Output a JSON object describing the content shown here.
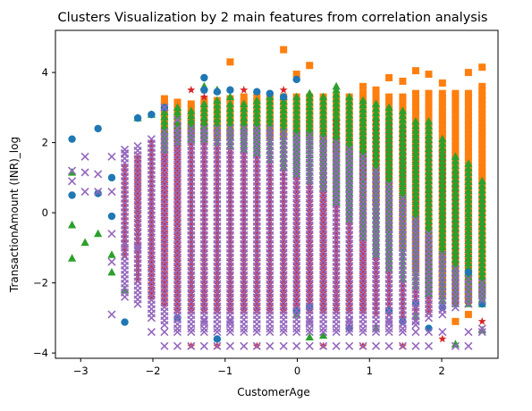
{
  "chart_data": {
    "type": "scatter",
    "title": "Clusters Visualization by 2 main features from correlation analysis",
    "xlabel": "CustomerAge",
    "ylabel": "TransactionAmount (INR)_log",
    "xlim": [
      -3.35,
      2.78
    ],
    "ylim": [
      -4.15,
      5.2
    ],
    "xticks": [
      -3,
      -2,
      -1,
      0,
      1,
      2
    ],
    "yticks": [
      -4,
      -2,
      0,
      2,
      4
    ],
    "grid": false,
    "legend": "none",
    "age_levels": [
      -3.12,
      -2.94,
      -2.76,
      -2.57,
      -2.39,
      -2.21,
      -2.02,
      -1.84,
      -1.66,
      -1.47,
      -1.29,
      -1.11,
      -0.93,
      -0.74,
      -0.56,
      -0.38,
      -0.19,
      -0.01,
      0.17,
      0.36,
      0.54,
      0.72,
      0.91,
      1.09,
      1.27,
      1.46,
      1.64,
      1.82,
      2.01,
      2.19,
      2.37,
      2.56
    ],
    "series": [
      {
        "color": "#ff7f0e",
        "marker": "square",
        "bands": [
          [
            -1.84,
            2.3,
            3.2
          ],
          [
            -1.66,
            2.2,
            3.15
          ],
          [
            -1.47,
            2.3,
            3.1
          ],
          [
            -1.29,
            2.2,
            3.2
          ],
          [
            -1.11,
            2.2,
            3.2
          ],
          [
            -0.93,
            2.2,
            3.25
          ],
          [
            -0.74,
            2.3,
            3.3
          ],
          [
            -0.56,
            2.2,
            3.3
          ],
          [
            -0.38,
            2.2,
            3.3
          ],
          [
            -0.19,
            2.2,
            3.3
          ],
          [
            -0.01,
            2.2,
            3.3
          ],
          [
            0.17,
            2.2,
            3.3
          ],
          [
            0.36,
            2.0,
            3.3
          ],
          [
            0.54,
            1.8,
            3.3
          ],
          [
            0.72,
            1.5,
            3.3
          ],
          [
            0.91,
            1.0,
            3.4
          ],
          [
            1.09,
            0.3,
            3.3
          ],
          [
            1.27,
            -0.4,
            3.3
          ],
          [
            1.46,
            -1.0,
            3.3
          ],
          [
            1.64,
            -1.6,
            3.4
          ],
          [
            1.82,
            -2.0,
            3.4
          ],
          [
            2.01,
            -2.3,
            3.4
          ],
          [
            2.19,
            -2.5,
            3.3
          ],
          [
            2.37,
            -2.5,
            3.4
          ],
          [
            2.56,
            -2.3,
            3.6
          ]
        ],
        "points": [
          [
            -1.84,
            3.25
          ],
          [
            -0.93,
            4.3
          ],
          [
            -0.19,
            4.65
          ],
          [
            -0.01,
            3.95
          ],
          [
            0.17,
            4.2
          ],
          [
            0.91,
            3.6
          ],
          [
            1.09,
            3.5
          ],
          [
            1.27,
            3.85
          ],
          [
            1.46,
            3.75
          ],
          [
            1.64,
            4.05
          ],
          [
            1.82,
            3.95
          ],
          [
            2.01,
            3.7
          ],
          [
            2.19,
            3.4
          ],
          [
            2.37,
            4.0
          ],
          [
            2.56,
            4.15
          ],
          [
            2.19,
            -3.1
          ],
          [
            2.37,
            -2.9
          ]
        ]
      },
      {
        "color": "#d62728",
        "marker": "star",
        "bands": [
          [
            -2.39,
            -1.2,
            1.3
          ],
          [
            -2.21,
            -1.8,
            1.6
          ],
          [
            -2.02,
            -2.4,
            2.0
          ],
          [
            -1.84,
            -2.6,
            2.4
          ],
          [
            -1.66,
            -2.8,
            2.5
          ],
          [
            -1.47,
            -2.8,
            2.6
          ],
          [
            -1.29,
            -2.8,
            2.6
          ],
          [
            -1.11,
            -2.8,
            2.6
          ],
          [
            -0.93,
            -2.8,
            2.6
          ],
          [
            -0.74,
            -2.8,
            2.6
          ],
          [
            -0.56,
            -2.8,
            2.6
          ],
          [
            -0.38,
            -2.8,
            2.6
          ],
          [
            -0.19,
            -2.8,
            2.6
          ],
          [
            -0.01,
            -2.8,
            2.6
          ],
          [
            0.17,
            -2.8,
            2.6
          ],
          [
            0.36,
            -2.8,
            2.6
          ],
          [
            0.54,
            -2.8,
            2.6
          ],
          [
            0.72,
            -2.8,
            2.6
          ],
          [
            0.91,
            -2.8,
            2.6
          ],
          [
            1.09,
            -2.9,
            2.6
          ],
          [
            1.27,
            -2.9,
            2.6
          ],
          [
            1.46,
            -3.0,
            2.4
          ],
          [
            1.64,
            -2.9,
            2.3
          ],
          [
            1.82,
            -2.8,
            2.1
          ],
          [
            2.01,
            -2.7,
            1.7
          ],
          [
            2.19,
            -2.6,
            1.1
          ],
          [
            2.37,
            -2.5,
            1.2
          ],
          [
            2.56,
            -2.4,
            0.4
          ]
        ],
        "points": [
          [
            -2.21,
            -1.9
          ],
          [
            -2.02,
            -1.6
          ],
          [
            -1.47,
            3.5
          ],
          [
            -1.29,
            3.3
          ],
          [
            -1.29,
            3.5
          ],
          [
            -0.74,
            3.5
          ],
          [
            -0.19,
            3.5
          ],
          [
            -1.47,
            -3.8
          ],
          [
            -1.11,
            -3.8
          ],
          [
            -0.56,
            -3.8
          ],
          [
            0.36,
            -3.8
          ],
          [
            0.91,
            -3.8
          ],
          [
            1.46,
            -3.8
          ],
          [
            2.01,
            -3.6
          ],
          [
            2.56,
            -3.1
          ],
          [
            2.37,
            -2.6
          ],
          [
            1.82,
            -2.8
          ]
        ]
      },
      {
        "color": "#2ca02c",
        "marker": "triangle",
        "bands": [
          [
            -1.84,
            1.8,
            3.0
          ],
          [
            -1.66,
            2.0,
            3.0
          ],
          [
            -1.47,
            2.1,
            2.9
          ],
          [
            -1.29,
            2.1,
            3.1
          ],
          [
            -1.11,
            2.0,
            3.2
          ],
          [
            -0.93,
            1.9,
            3.1
          ],
          [
            -0.74,
            1.8,
            3.1
          ],
          [
            -0.56,
            1.7,
            3.2
          ],
          [
            -0.38,
            1.5,
            3.3
          ],
          [
            -0.19,
            1.3,
            3.3
          ],
          [
            -0.01,
            1.1,
            3.3
          ],
          [
            0.17,
            0.9,
            3.4
          ],
          [
            0.36,
            0.7,
            3.3
          ],
          [
            0.54,
            0.3,
            3.5
          ],
          [
            0.72,
            -0.2,
            3.3
          ],
          [
            0.91,
            -0.7,
            3.2
          ],
          [
            1.09,
            -1.2,
            3.1
          ],
          [
            1.27,
            -1.6,
            3.0
          ],
          [
            1.46,
            -1.9,
            2.9
          ],
          [
            1.64,
            -2.1,
            2.6
          ],
          [
            1.82,
            -2.3,
            2.6
          ],
          [
            2.01,
            -2.5,
            2.1
          ],
          [
            2.19,
            -2.6,
            1.6
          ],
          [
            2.37,
            -2.6,
            1.4
          ],
          [
            2.56,
            -2.6,
            0.9
          ]
        ],
        "points": [
          [
            -3.12,
            1.15
          ],
          [
            -3.12,
            -0.35
          ],
          [
            -3.12,
            -1.3
          ],
          [
            -2.94,
            -0.85
          ],
          [
            -2.76,
            -0.6
          ],
          [
            -2.57,
            -1.7
          ],
          [
            -2.57,
            -1.2
          ],
          [
            -2.39,
            -2.2
          ],
          [
            -2.21,
            2.7
          ],
          [
            -2.02,
            2.8
          ],
          [
            -1.29,
            3.6
          ],
          [
            -1.11,
            3.5
          ],
          [
            -0.93,
            3.3
          ],
          [
            0.54,
            3.6
          ],
          [
            0.17,
            -3.55
          ],
          [
            0.36,
            -3.5
          ],
          [
            -0.01,
            -2.9
          ],
          [
            1.09,
            -3.3
          ],
          [
            1.27,
            -2.8
          ],
          [
            1.64,
            -2.95
          ],
          [
            2.56,
            -3.35
          ],
          [
            2.19,
            -3.75
          ],
          [
            2.01,
            -2.5
          ]
        ]
      },
      {
        "color": "#1f77b4",
        "marker": "circle",
        "bands": [],
        "points": [
          [
            -3.12,
            2.1
          ],
          [
            -3.12,
            0.5
          ],
          [
            -2.76,
            2.4
          ],
          [
            -2.76,
            0.55
          ],
          [
            -2.57,
            1.0
          ],
          [
            -2.57,
            -0.1
          ],
          [
            -2.39,
            -3.12
          ],
          [
            -2.21,
            2.7
          ],
          [
            -2.02,
            2.8
          ],
          [
            -1.84,
            3.0
          ],
          [
            -1.29,
            3.85
          ],
          [
            -1.29,
            3.5
          ],
          [
            -1.11,
            3.45
          ],
          [
            -0.93,
            3.5
          ],
          [
            -0.56,
            3.45
          ],
          [
            -0.38,
            3.4
          ],
          [
            -0.19,
            3.3
          ],
          [
            -0.01,
            3.8
          ],
          [
            -1.66,
            -3.0
          ],
          [
            -1.11,
            -3.6
          ],
          [
            -0.01,
            -2.8
          ],
          [
            0.17,
            -2.7
          ],
          [
            0.72,
            -3.3
          ],
          [
            1.27,
            -2.8
          ],
          [
            1.46,
            -3.1
          ],
          [
            2.01,
            -2.7
          ],
          [
            1.82,
            -3.3
          ],
          [
            1.64,
            -2.6
          ],
          [
            2.56,
            -2.6
          ],
          [
            2.37,
            -1.7
          ]
        ]
      },
      {
        "color": "#9467bd",
        "marker": "x",
        "bands": [
          [
            -2.39,
            -2.4,
            1.8
          ],
          [
            -2.21,
            -2.6,
            1.9
          ],
          [
            -2.02,
            -3.0,
            2.1
          ],
          [
            -1.84,
            -3.2,
            2.3
          ],
          [
            -1.66,
            -3.3,
            2.4
          ],
          [
            -1.47,
            -3.3,
            2.4
          ],
          [
            -1.29,
            -3.3,
            2.4
          ],
          [
            -1.11,
            -3.3,
            2.4
          ],
          [
            -0.93,
            -3.3,
            2.4
          ],
          [
            -0.74,
            -3.3,
            2.4
          ],
          [
            -0.56,
            -3.3,
            2.4
          ],
          [
            -0.38,
            -3.3,
            2.4
          ],
          [
            -0.19,
            -3.3,
            2.3
          ],
          [
            -0.01,
            -3.3,
            2.2
          ],
          [
            0.17,
            -3.3,
            2.2
          ],
          [
            0.36,
            -3.3,
            2.1
          ],
          [
            0.54,
            -3.3,
            2.0
          ],
          [
            0.72,
            -3.3,
            1.8
          ],
          [
            0.91,
            -3.3,
            1.6
          ],
          [
            1.09,
            -3.3,
            1.2
          ],
          [
            1.27,
            -3.3,
            0.8
          ],
          [
            1.46,
            -3.3,
            0.4
          ],
          [
            1.64,
            -3.2,
            -0.2
          ],
          [
            1.82,
            -3.0,
            -0.6
          ],
          [
            2.01,
            -2.9,
            -1.2
          ],
          [
            2.19,
            -2.7,
            -1.6
          ],
          [
            2.37,
            -2.6,
            -1.9
          ],
          [
            2.56,
            -2.5,
            -2.0
          ]
        ],
        "points": [
          [
            -3.12,
            1.2
          ],
          [
            -3.12,
            0.9
          ],
          [
            -2.94,
            1.6
          ],
          [
            -2.94,
            1.15
          ],
          [
            -2.94,
            0.6
          ],
          [
            -2.76,
            1.1
          ],
          [
            -2.76,
            0.6
          ],
          [
            -2.57,
            0.6
          ],
          [
            -2.57,
            1.6
          ],
          [
            -2.57,
            -0.6
          ],
          [
            -2.57,
            -1.4
          ],
          [
            -2.57,
            -2.9
          ],
          [
            -2.39,
            -0.9
          ],
          [
            -2.39,
            1.7
          ],
          [
            -2.21,
            -1.0
          ],
          [
            -1.84,
            3.0
          ],
          [
            -1.66,
            2.65
          ],
          [
            -1.84,
            -3.8
          ],
          [
            -1.66,
            -3.8
          ],
          [
            -1.47,
            -3.8
          ],
          [
            -1.29,
            -3.8
          ],
          [
            -1.11,
            -3.8
          ],
          [
            -0.93,
            -3.8
          ],
          [
            -0.74,
            -3.8
          ],
          [
            -0.56,
            -3.8
          ],
          [
            -0.38,
            -3.8
          ],
          [
            -0.19,
            -3.8
          ],
          [
            -0.01,
            -3.8
          ],
          [
            0.17,
            -3.8
          ],
          [
            0.36,
            -3.8
          ],
          [
            0.54,
            -3.8
          ],
          [
            0.72,
            -3.8
          ],
          [
            0.91,
            -3.8
          ],
          [
            1.09,
            -3.8
          ],
          [
            1.27,
            -3.8
          ],
          [
            1.46,
            -3.8
          ],
          [
            1.64,
            -3.8
          ],
          [
            1.82,
            -3.8
          ],
          [
            2.19,
            -3.8
          ],
          [
            2.37,
            -3.8
          ],
          [
            2.56,
            -3.4
          ],
          [
            2.56,
            -3.3
          ],
          [
            2.37,
            -3.4
          ],
          [
            2.01,
            -3.4
          ],
          [
            1.82,
            -3.4
          ],
          [
            1.64,
            -3.4
          ],
          [
            1.46,
            -3.4
          ],
          [
            1.27,
            -3.4
          ],
          [
            1.09,
            -3.4
          ],
          [
            0.91,
            -3.4
          ],
          [
            0.72,
            -3.4
          ],
          [
            0.54,
            -3.4
          ],
          [
            0.36,
            -3.4
          ],
          [
            0.17,
            -3.4
          ],
          [
            -0.01,
            -3.4
          ],
          [
            -0.19,
            -3.4
          ],
          [
            -0.38,
            -3.4
          ],
          [
            -0.56,
            -3.4
          ],
          [
            -0.74,
            -3.4
          ],
          [
            -0.93,
            -3.4
          ],
          [
            -1.11,
            -3.4
          ],
          [
            -1.29,
            -3.4
          ],
          [
            -1.47,
            -3.4
          ],
          [
            -1.66,
            -3.4
          ],
          [
            -1.84,
            -3.4
          ],
          [
            -2.02,
            -3.4
          ],
          [
            -0.93,
            -3.1
          ],
          [
            -1.29,
            -3.1
          ],
          [
            0.17,
            -3.1
          ],
          [
            0.72,
            -3.1
          ],
          [
            1.27,
            -3.1
          ],
          [
            1.64,
            -3.1
          ]
        ]
      }
    ]
  }
}
